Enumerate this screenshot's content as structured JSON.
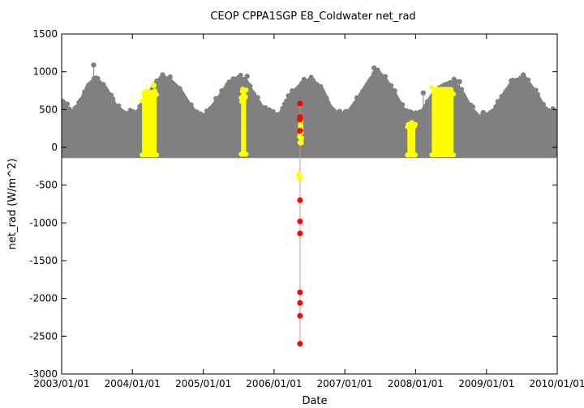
{
  "chart_data": {
    "type": "scatter",
    "title": "CEOP CPPA1SGP E8_Coldwater  net_rad",
    "xlabel": "Date",
    "ylabel": "net_rad (W/m^2)",
    "xlim": [
      "2003/01/01",
      "2010/01/01"
    ],
    "ylim": [
      -3000,
      1500
    ],
    "x_ticks": [
      "2003/01/01",
      "2004/01/01",
      "2005/01/01",
      "2006/01/01",
      "2007/01/01",
      "2008/01/01",
      "2009/01/01",
      "2010/01/01"
    ],
    "y_ticks": [
      1500,
      1000,
      500,
      0,
      -500,
      -1000,
      -1500,
      -2000,
      -2500,
      -3000
    ],
    "grid": false,
    "colors": {
      "good": "#808080",
      "questionable": "#ffff00",
      "bad": "#ff0000",
      "bad_line": "#ff8080"
    },
    "series": [
      {
        "role": "envelope-gray",
        "note_upper_envelope": [
          [
            "2003/01/01",
            600
          ],
          [
            "2003/03/01",
            430
          ],
          [
            "2003/04/15",
            620
          ],
          [
            "2003/05/20",
            820
          ],
          [
            "2003/06/15",
            880
          ],
          [
            "2003/07/10",
            870
          ],
          [
            "2003/08/15",
            780
          ],
          [
            "2003/10/01",
            560
          ],
          [
            "2003/11/15",
            460
          ],
          [
            "2004/01/10",
            420
          ],
          [
            "2004/03/01",
            560
          ],
          [
            "2004/05/01",
            850
          ],
          [
            "2004/06/15",
            920
          ],
          [
            "2004/07/15",
            880
          ],
          [
            "2004/09/01",
            760
          ],
          [
            "2004/10/15",
            580
          ],
          [
            "2004/12/01",
            420
          ],
          [
            "2005/01/15",
            420
          ],
          [
            "2005/03/15",
            620
          ],
          [
            "2005/05/15",
            850
          ],
          [
            "2005/06/20",
            890
          ],
          [
            "2005/08/01",
            900
          ],
          [
            "2005/09/15",
            700
          ],
          [
            "2005/11/01",
            520
          ],
          [
            "2005/12/15",
            440
          ],
          [
            "2006/02/01",
            430
          ],
          [
            "2006/04/01",
            700
          ],
          [
            "2006/06/01",
            850
          ],
          [
            "2006/07/15",
            880
          ],
          [
            "2006/09/01",
            780
          ],
          [
            "2006/10/15",
            540
          ],
          [
            "2006/12/01",
            420
          ],
          [
            "2007/01/15",
            440
          ],
          [
            "2007/03/15",
            650
          ],
          [
            "2007/05/15",
            900
          ],
          [
            "2007/06/20",
            1000
          ],
          [
            "2007/08/01",
            880
          ],
          [
            "2007/09/15",
            700
          ],
          [
            "2007/11/01",
            480
          ],
          [
            "2007/12/15",
            420
          ],
          [
            "2008/02/01",
            450
          ],
          [
            "2008/04/01",
            700
          ],
          [
            "2008/06/01",
            830
          ],
          [
            "2008/07/15",
            860
          ],
          [
            "2008/09/01",
            700
          ],
          [
            "2008/10/15",
            500
          ],
          [
            "2008/12/01",
            380
          ],
          [
            "2009/01/15",
            380
          ],
          [
            "2009/03/15",
            620
          ],
          [
            "2009/05/15",
            860
          ],
          [
            "2009/06/20",
            880
          ],
          [
            "2009/08/01",
            860
          ],
          [
            "2009/09/15",
            700
          ],
          [
            "2009/11/01",
            480
          ],
          [
            "2009/12/20",
            430
          ]
        ],
        "lower_bound": -110
      },
      {
        "role": "flagged-yellow-bands",
        "bands": [
          {
            "start": "2004/02/20",
            "end": "2004/05/05",
            "low": -100,
            "high": 760
          },
          {
            "start": "2005/07/15",
            "end": "2005/08/10",
            "low": -90,
            "high": 780
          },
          {
            "start": "2007/11/20",
            "end": "2007/12/31",
            "low": -100,
            "high": 340
          },
          {
            "start": "2008/03/25",
            "end": "2008/07/15",
            "low": -100,
            "high": 800
          }
        ],
        "points": [
          {
            "x": "2004/04/20",
            "y": 820
          },
          {
            "x": "2006/05/10",
            "y": -360
          },
          {
            "x": "2006/05/14",
            "y": -410
          },
          {
            "x": "2006/05/18",
            "y": 280
          },
          {
            "x": "2006/05/22",
            "y": 120
          },
          {
            "x": "2006/05/20",
            "y": 60
          }
        ]
      },
      {
        "role": "bad-red",
        "points": [
          {
            "x": "2006/05/15",
            "y": 580
          },
          {
            "x": "2006/05/15",
            "y": 400
          },
          {
            "x": "2006/05/15",
            "y": 370
          },
          {
            "x": "2006/05/15",
            "y": 220
          },
          {
            "x": "2006/05/15",
            "y": -700
          },
          {
            "x": "2006/05/15",
            "y": -980
          },
          {
            "x": "2006/05/15",
            "y": -1140
          },
          {
            "x": "2006/05/15",
            "y": -1920
          },
          {
            "x": "2006/05/15",
            "y": -2060
          },
          {
            "x": "2006/05/15",
            "y": -2230
          },
          {
            "x": "2006/05/15",
            "y": -2600
          }
        ]
      },
      {
        "role": "outlier-gray",
        "points": [
          {
            "x": "2003/06/15",
            "y": 1090
          },
          {
            "x": "2004/01/05",
            "y": 470
          },
          {
            "x": "2004/06/05",
            "y": 960
          },
          {
            "x": "2005/01/20",
            "y": 480
          },
          {
            "x": "2005/08/15",
            "y": 940
          },
          {
            "x": "2005/12/20",
            "y": 470
          },
          {
            "x": "2006/06/05",
            "y": 900
          },
          {
            "x": "2007/06/01",
            "y": 1050
          },
          {
            "x": "2007/12/10",
            "y": 460
          },
          {
            "x": "2008/02/10",
            "y": 720
          },
          {
            "x": "2008/08/15",
            "y": 870
          },
          {
            "x": "2008/12/15",
            "y": 460
          },
          {
            "x": "2009/07/10",
            "y": 960
          },
          {
            "x": "2009/12/10",
            "y": 510
          },
          {
            "x": "2003/01/10",
            "y": 600
          }
        ]
      }
    ]
  }
}
